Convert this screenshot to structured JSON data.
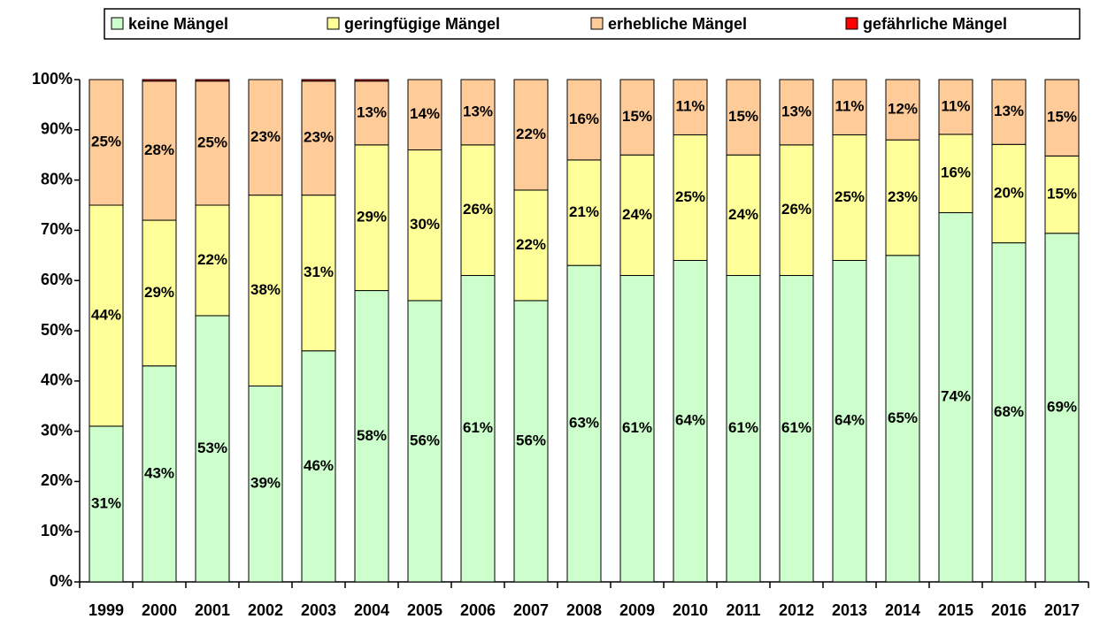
{
  "chart_data": {
    "type": "stacked-bar",
    "categories": [
      "1999",
      "2000",
      "2001",
      "2002",
      "2003",
      "2004",
      "2005",
      "2006",
      "2007",
      "2008",
      "2009",
      "2010",
      "2011",
      "2012",
      "2013",
      "2014",
      "2015",
      "2016",
      "2017"
    ],
    "series": [
      {
        "name": "keine Mängel",
        "color": "#ccffcc",
        "values": [
          31,
          43,
          53,
          39,
          46,
          58,
          56,
          61,
          56,
          63,
          61,
          64,
          61,
          61,
          64,
          65,
          73.5,
          67.5,
          69.4
        ],
        "value_labels": [
          "31%",
          "43%",
          "53%",
          "39%",
          "46%",
          "58%",
          "56%",
          "61%",
          "56%",
          "63%",
          "61%",
          "64%",
          "61%",
          "61%",
          "64%",
          "65%",
          "74%",
          "68%",
          "69%"
        ]
      },
      {
        "name": "geringfügige Mängel",
        "color": "#ffff99",
        "values": [
          44,
          29,
          22,
          38,
          31,
          29,
          30,
          26,
          22,
          21,
          24,
          25,
          24,
          26,
          25,
          23,
          15.6,
          19.6,
          15.4
        ],
        "value_labels": [
          "44%",
          "29%",
          "22%",
          "38%",
          "31%",
          "29%",
          "30%",
          "26%",
          "22%",
          "21%",
          "24%",
          "25%",
          "24%",
          "26%",
          "25%",
          "23%",
          "16%",
          "20%",
          "15%"
        ]
      },
      {
        "name": "erhebliche Mängel",
        "color": "#ffcc99",
        "values": [
          25,
          27.7,
          24.7,
          23,
          22.7,
          12.7,
          14,
          13,
          22,
          16,
          15,
          11,
          15,
          13,
          11,
          12,
          10.9,
          12.9,
          15.2
        ],
        "value_labels": [
          "25%",
          "28%",
          "25%",
          "23%",
          "23%",
          "13%",
          "14%",
          "13%",
          "22%",
          "16%",
          "15%",
          "11%",
          "15%",
          "13%",
          "11%",
          "12%",
          "11%",
          "13%",
          "15%"
        ]
      },
      {
        "name": "gefährliche Mängel",
        "color": "#ff0000",
        "values": [
          0,
          0.3,
          0.3,
          0,
          0.3,
          0.3,
          0,
          0,
          0,
          0,
          0,
          0,
          0,
          0,
          0,
          0,
          0,
          0,
          0
        ]
      }
    ],
    "ylim": [
      0,
      100
    ],
    "yticks": [
      {
        "value": 0,
        "label": "0%"
      },
      {
        "value": 10,
        "label": "10%"
      },
      {
        "value": 20,
        "label": "20%"
      },
      {
        "value": 30,
        "label": "30%"
      },
      {
        "value": 40,
        "label": "40%"
      },
      {
        "value": 50,
        "label": "50%"
      },
      {
        "value": 60,
        "label": "60%"
      },
      {
        "value": 70,
        "label": "70%"
      },
      {
        "value": 80,
        "label": "80%"
      },
      {
        "value": 90,
        "label": "90%"
      },
      {
        "value": 100,
        "label": "100%"
      }
    ],
    "grid": false,
    "legend": "top"
  }
}
